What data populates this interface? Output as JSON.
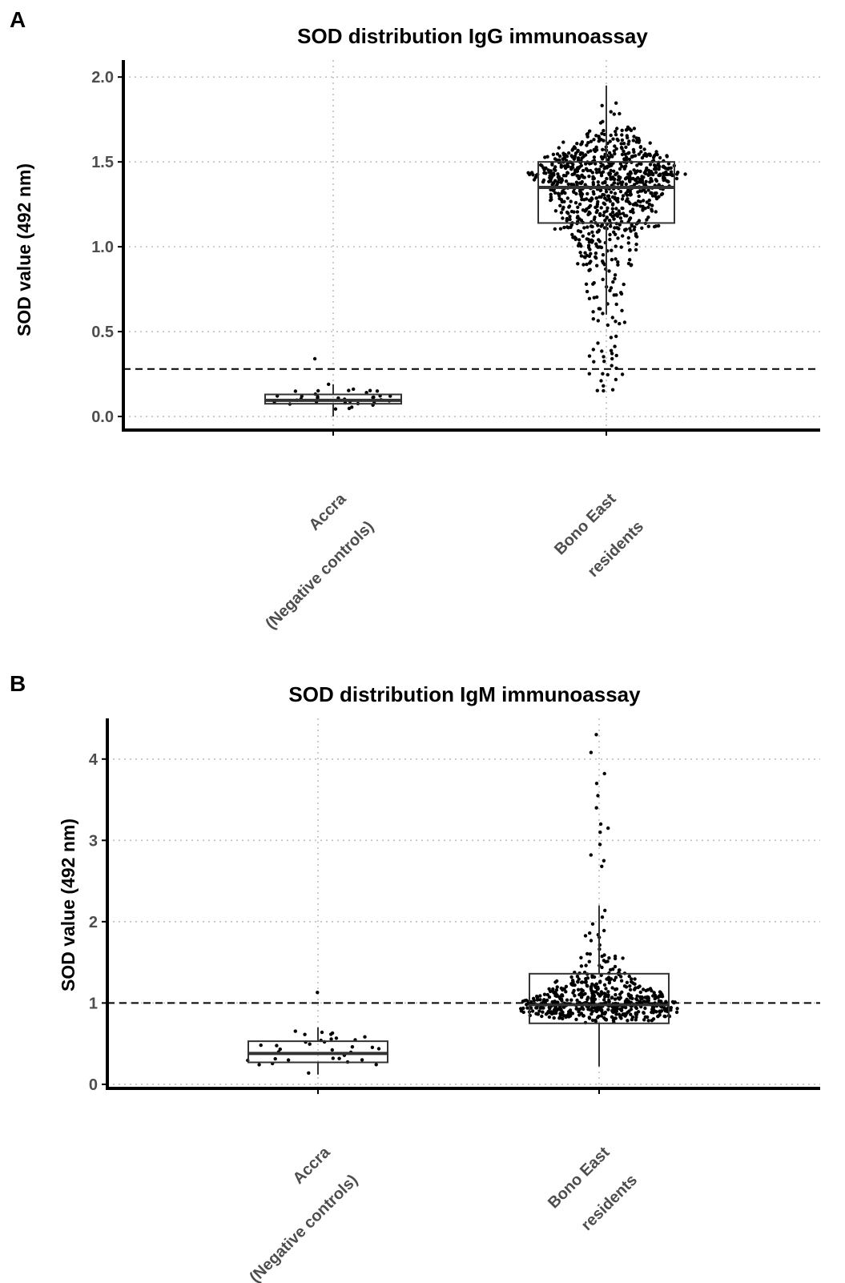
{
  "chart_data": [
    {
      "panel_label": "A",
      "type": "box",
      "title": "SOD distribution IgG immunoassay",
      "xlabel": "",
      "ylabel": "SOD value (492 nm)",
      "ylim": [
        -0.08,
        2.1
      ],
      "yticks": [
        "0.0",
        "0.5",
        "1.0",
        "1.5",
        "2.0"
      ],
      "grid": true,
      "cutoff": 0.28,
      "categories": [
        {
          "line1": "Accra",
          "line2": "(Negative controls)"
        },
        {
          "line1": "Bono East",
          "line2": "residents"
        }
      ],
      "boxes": [
        {
          "q1": 0.075,
          "median": 0.095,
          "q3": 0.13,
          "whisker_low": 0.0,
          "whisker_high": 0.19,
          "n": 35
        },
        {
          "q1": 1.14,
          "median": 1.35,
          "q3": 1.5,
          "whisker_low": 0.6,
          "whisker_high": 1.95,
          "n": 900
        }
      ]
    },
    {
      "panel_label": "B",
      "type": "box",
      "title": "SOD distribution IgM immunoassay",
      "xlabel": "",
      "ylabel": "SOD value (492 nm)",
      "ylim": [
        -0.05,
        4.5
      ],
      "yticks": [
        "0",
        "1",
        "2",
        "3",
        "4"
      ],
      "grid": true,
      "cutoff": 1.0,
      "categories": [
        {
          "line1": "Accra",
          "line2": "(Negative controls)"
        },
        {
          "line1": "Bono East",
          "line2": "residents"
        }
      ],
      "boxes": [
        {
          "q1": 0.27,
          "median": 0.38,
          "q3": 0.53,
          "whisker_low": 0.12,
          "whisker_high": 0.7,
          "n": 35
        },
        {
          "q1": 0.75,
          "median": 0.98,
          "q3": 1.36,
          "whisker_low": 0.22,
          "whisker_high": 2.2,
          "n": 550
        }
      ]
    }
  ]
}
